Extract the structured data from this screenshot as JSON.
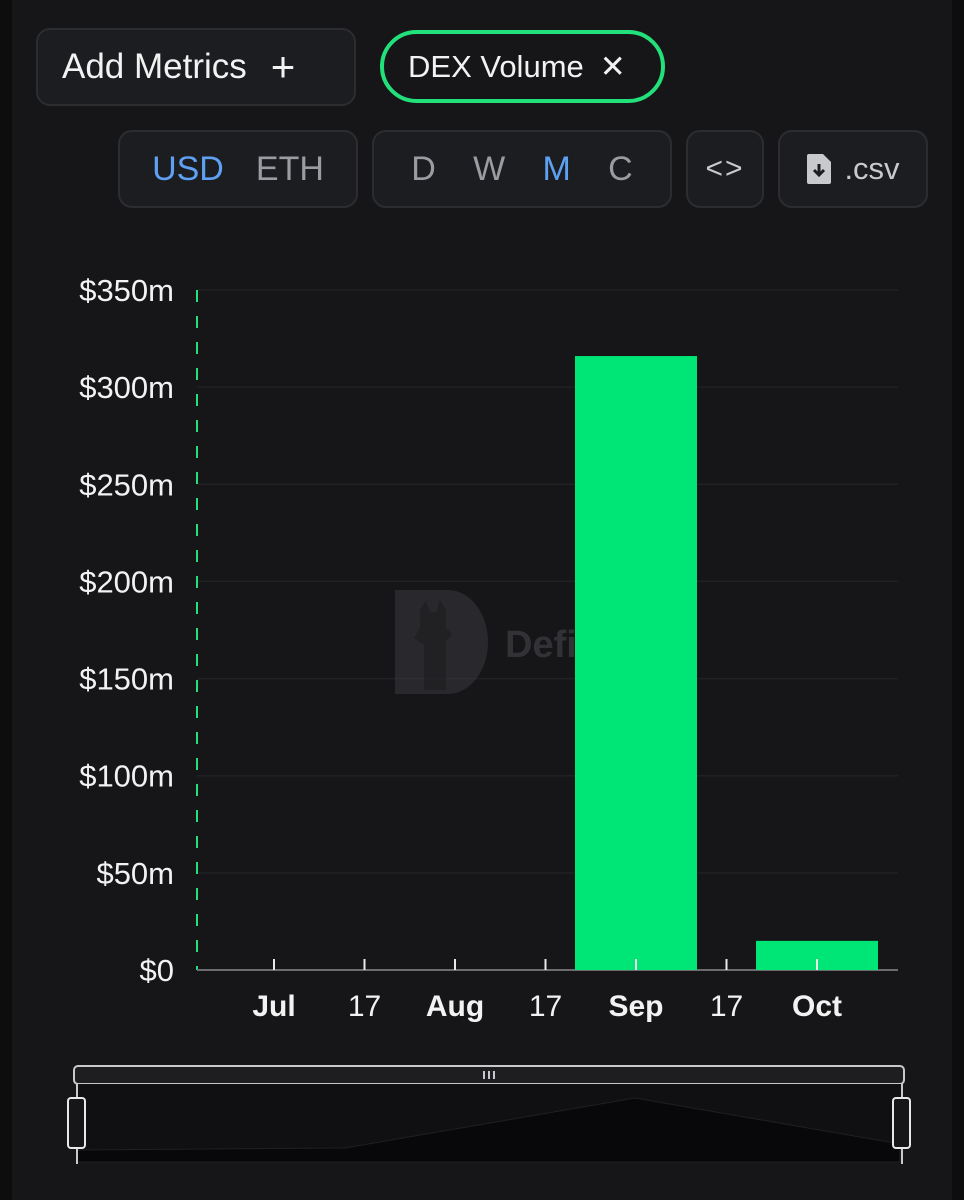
{
  "toolbar": {
    "add_metrics_label": "Add Metrics",
    "add_icon": "plus-icon",
    "active_metric_label": "DEX Volume",
    "remove_icon": "close-icon",
    "accent_color": "#22e07a"
  },
  "unit_toggle": {
    "options": [
      "USD",
      "ETH"
    ],
    "selected": "USD"
  },
  "period_toggle": {
    "options": [
      "D",
      "W",
      "M",
      "C"
    ],
    "selected": "M"
  },
  "actions": {
    "embed_glyph": "<>",
    "embed_icon": "code-icon",
    "csv_label": ".csv",
    "csv_icon": "file-download-icon"
  },
  "watermark": {
    "text": "DefiLlama",
    "icon": "llama-logo-icon"
  },
  "chart_data": {
    "type": "bar",
    "title": "",
    "xlabel": "",
    "ylabel": "",
    "ylim": [
      0,
      350000000
    ],
    "yticks": [
      "$0",
      "$50m",
      "$100m",
      "$150m",
      "$200m",
      "$250m",
      "$300m",
      "$350m"
    ],
    "xticks": [
      {
        "label": "Jul",
        "bold": true
      },
      {
        "label": "17",
        "bold": false
      },
      {
        "label": "Aug",
        "bold": true
      },
      {
        "label": "17",
        "bold": false
      },
      {
        "label": "Sep",
        "bold": true
      },
      {
        "label": "17",
        "bold": false
      },
      {
        "label": "Oct",
        "bold": true
      }
    ],
    "categories": [
      "Sep",
      "Oct"
    ],
    "values": [
      316000000,
      15000000
    ],
    "bar_color": "#00e676",
    "grid": true
  }
}
